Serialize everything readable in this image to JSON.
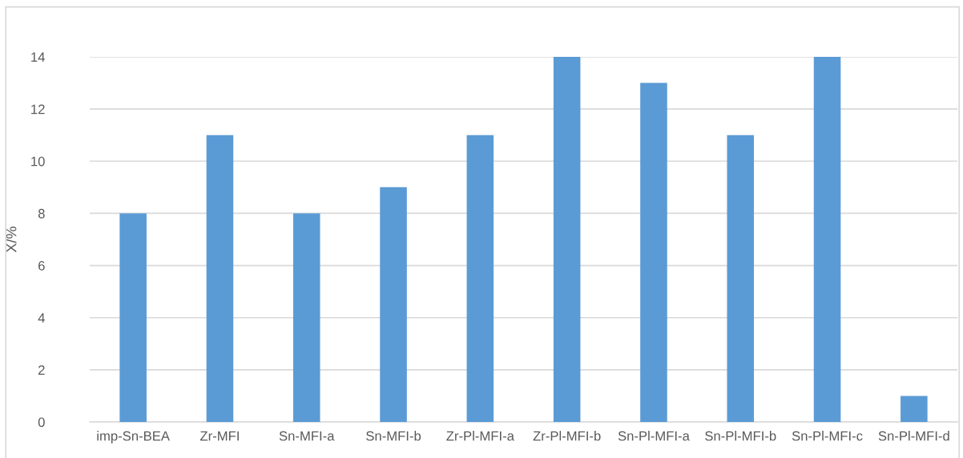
{
  "chart_data": {
    "type": "bar",
    "ylabel": "X/%",
    "categories": [
      "imp-Sn-BEA",
      "Zr-MFI",
      "Sn-MFI-a",
      "Sn-MFI-b",
      "Zr-Pl-MFI-a",
      "Zr-Pl-MFI-b",
      "Sn-Pl-MFI-a",
      "Sn-Pl-MFI-b",
      "Sn-Pl-MFI-c",
      "Sn-Pl-MFI-d"
    ],
    "values": [
      8,
      11,
      8,
      9,
      11,
      14,
      13,
      11,
      14,
      1
    ],
    "color": "#5b9bd5",
    "ylim": [
      0,
      14
    ],
    "yticks": [
      0,
      2,
      4,
      6,
      8,
      10,
      12,
      14
    ],
    "grid": "y"
  }
}
